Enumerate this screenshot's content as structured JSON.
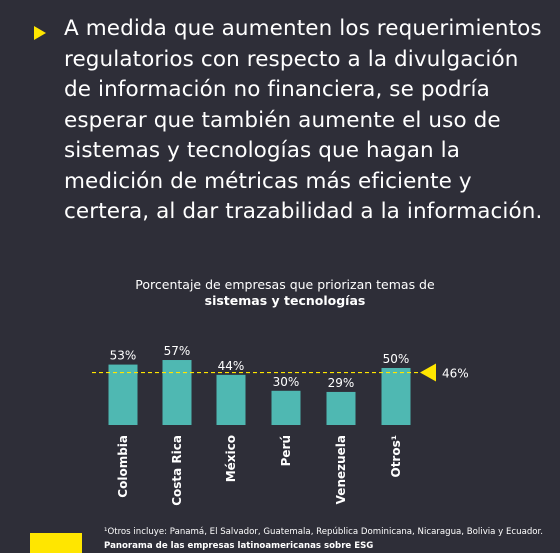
{
  "headline": "A medida que aumenten los requerimientos regulatorios con respecto a la divulgación de información no financiera, se podría esperar que también aumente el uso de sistemas y tecnologías que hagan la medición de métricas más eficiente y certera, al dar trazabilidad a la información.",
  "chart_data": {
    "type": "bar",
    "title_line1": "Porcentaje de empresas que priorizan temas de",
    "title_line2": "sistemas y tecnologías",
    "categories": [
      "Colombia",
      "Costa Rica",
      "México",
      "Perú",
      "Venezuela",
      "Otros¹"
    ],
    "values": [
      53,
      57,
      44,
      30,
      29,
      50
    ],
    "value_labels": [
      "53%",
      "57%",
      "44%",
      "30%",
      "29%",
      "50%"
    ],
    "reference_line": {
      "value": 46,
      "label": "46%"
    },
    "ylim": [
      0,
      60
    ],
    "grid": false,
    "bar_color": "#4fb8b2",
    "reference_color": "#ffe600"
  },
  "footnote": "¹Otros incluye: Panamá, El Salvador, Guatemala, República Dominicana, Nicaragua, Bolivia y Ecuador.",
  "source": "Panorama de las empresas latinoamericanas sobre ESG",
  "colors": {
    "background": "#2e2e38",
    "accent": "#ffe600",
    "bar": "#4fb8b2"
  }
}
